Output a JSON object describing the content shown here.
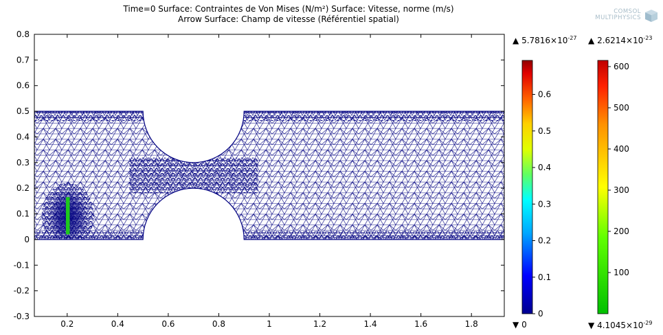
{
  "title": {
    "line1": "Time=0   Surface: Contraintes de Von Mises (N/m²)  Surface: Vitesse, norme (m/s)",
    "line2": "Arrow Surface: Champ de vitesse (Référentiel spatial)"
  },
  "logo": {
    "line1": "COMSOL",
    "line2": "MULTIPHYSICS",
    "icon": "comsol-cube-icon"
  },
  "colors": {
    "mesh": "#000080",
    "solid_obstacle": "#1ec81e",
    "frame": "#000000"
  },
  "colorbar_left": {
    "max_mantissa": "5.7816×10",
    "max_exp": "-27",
    "min_text": "0",
    "ticks": [
      "0.6",
      "0.5",
      "0.4",
      "0.3",
      "0.2",
      "0.1",
      "0"
    ],
    "max_marker": "▲",
    "min_marker": "▼",
    "colormap": "rainbow"
  },
  "colorbar_right": {
    "max_mantissa": "2.6214×10",
    "max_exp": "-23",
    "min_mantissa": "4.1045×10",
    "min_exp": "-29",
    "ticks": [
      "600",
      "500",
      "400",
      "300",
      "200",
      "100"
    ],
    "max_marker": "▲",
    "min_marker": "▼",
    "colormap": "traffic"
  },
  "chart_data": {
    "type": "mesh-plot",
    "xlim": [
      0.07,
      1.93
    ],
    "ylim": [
      -0.3,
      0.8
    ],
    "xticks": [
      "0.2",
      "0.4",
      "0.6",
      "0.8",
      "1",
      "1.2",
      "1.4",
      "1.6",
      "1.8"
    ],
    "xtick_values": [
      0.2,
      0.4,
      0.6,
      0.8,
      1.0,
      1.2,
      1.4,
      1.6,
      1.8
    ],
    "yticks": [
      "-0.3",
      "-0.2",
      "-0.1",
      "0",
      "0.1",
      "0.2",
      "0.3",
      "0.4",
      "0.5",
      "0.6",
      "0.7",
      "0.8"
    ],
    "ytick_values": [
      -0.3,
      -0.2,
      -0.1,
      0,
      0.1,
      0.2,
      0.3,
      0.4,
      0.5,
      0.6,
      0.7,
      0.8
    ],
    "channel": {
      "x_start": 0.07,
      "x_end": 1.93,
      "y_bottom": 0,
      "y_top": 0.5
    },
    "lower_arc": {
      "cx": 0.7,
      "cy": 0,
      "r": 0.2
    },
    "upper_arc": {
      "cx": 0.7,
      "cy": 0.5,
      "r": 0.2
    },
    "obstacle": {
      "x0": 0.195,
      "x1": 0.21,
      "y0": 0.02,
      "y1": 0.165
    }
  }
}
